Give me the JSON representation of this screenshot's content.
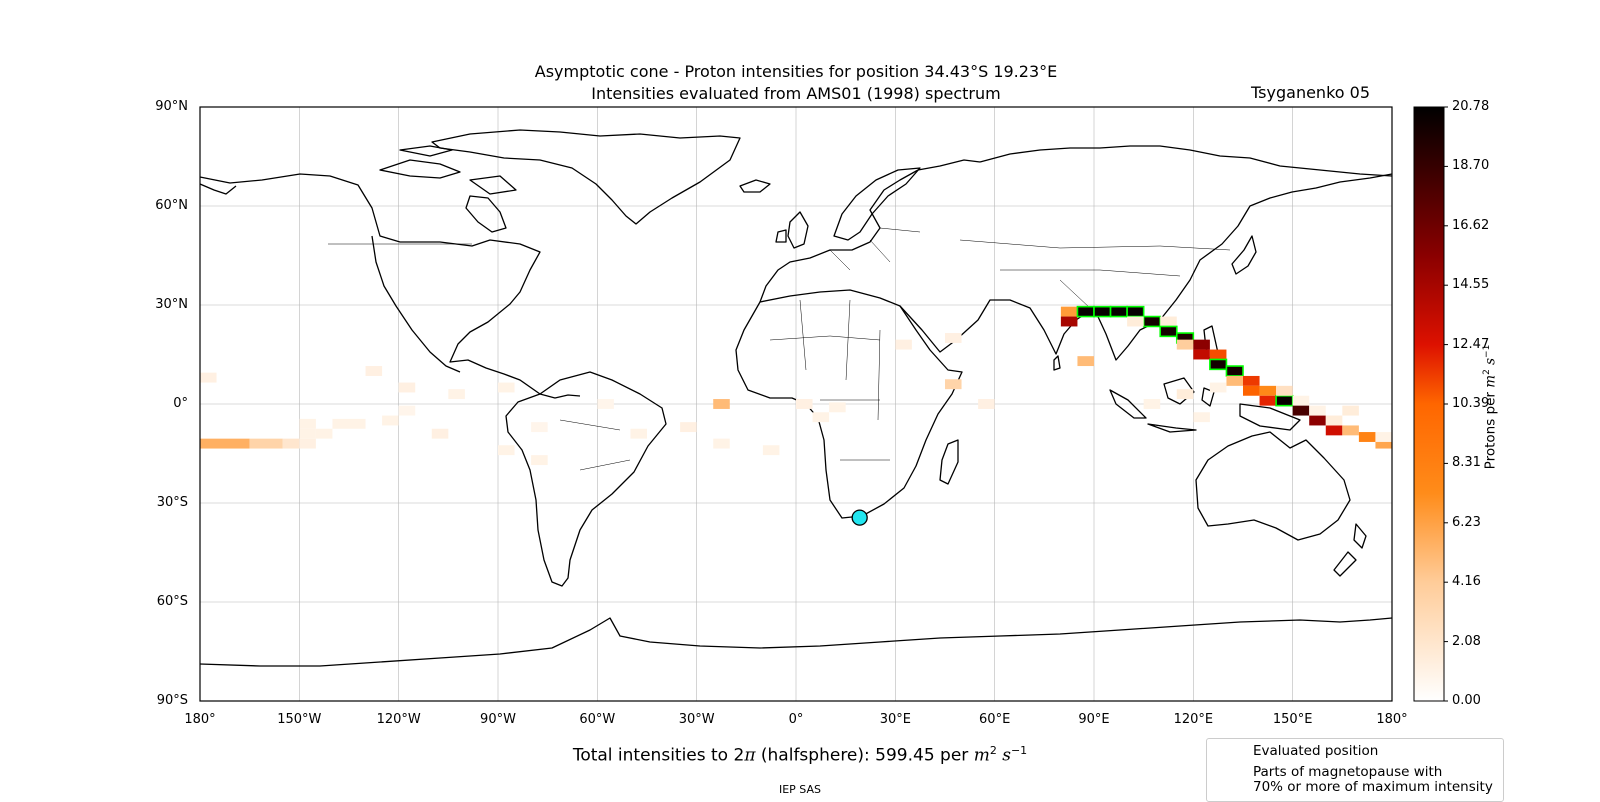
{
  "title": {
    "line1": "Asymptotic cone - Proton intensities for position 34.43°S 19.23°E",
    "line2": "Intensities evaluated from AMS01 (1998) spectrum",
    "model": "Tsyganenko 05"
  },
  "map": {
    "lat_ticks": [
      "90°N",
      "60°N",
      "30°N",
      "0°",
      "30°S",
      "60°S",
      "90°S"
    ],
    "lon_ticks": [
      "180°",
      "150°W",
      "120°W",
      "90°W",
      "60°W",
      "30°W",
      "0°",
      "30°E",
      "60°E",
      "90°E",
      "120°E",
      "150°E",
      "180°"
    ],
    "evaluated_position": {
      "lat": -34.43,
      "lon": 19.23,
      "color": "#22e6f0"
    },
    "highlight_color": "#00ff00"
  },
  "colorbar": {
    "ticks": [
      "20.78",
      "18.70",
      "16.62",
      "14.55",
      "12.47",
      "10.39",
      "8.31",
      "6.23",
      "4.16",
      "2.08",
      "0.00"
    ],
    "min": 0.0,
    "max": 20.78,
    "label_main": "Protons per ",
    "label_units_m": "m",
    "label_units_rest": "2 s−1"
  },
  "total": {
    "prefix": "Total intensities to 2",
    "pi": "π",
    "mid": " (halfsphere): 599.45 per ",
    "unit_m": "m",
    "unit_s": "s",
    "exp_2": "2",
    "exp_m1": "−1"
  },
  "legend": {
    "evaluated": "Evaluated position",
    "magnetopause_line1": "Parts of magnetopause with",
    "magnetopause_line2": "70% or more of maximum intensity"
  },
  "footer": "IEP SAS",
  "chart_data": {
    "type": "heatmap",
    "xlabel": "",
    "ylabel": "",
    "xlim": [
      -180,
      180
    ],
    "ylim": [
      -90,
      90
    ],
    "grid": true,
    "cells": [
      {
        "lon": -180,
        "lat": -12,
        "v": 5.5,
        "w": 15
      },
      {
        "lon": -165,
        "lat": -12,
        "v": 3.5,
        "w": 10
      },
      {
        "lon": -155,
        "lat": -12,
        "v": 2.0,
        "w": 5
      },
      {
        "lon": -150,
        "lat": -12,
        "v": 1.2,
        "w": 5
      },
      {
        "lon": -150,
        "lat": -9,
        "v": 1.0,
        "w": 5
      },
      {
        "lon": -150,
        "lat": -6,
        "v": 1.0,
        "w": 5
      },
      {
        "lon": -145,
        "lat": -9,
        "v": 1.0,
        "w": 5
      },
      {
        "lon": -140,
        "lat": -6,
        "v": 1.0,
        "w": 10
      },
      {
        "lon": -180,
        "lat": 8,
        "v": 1.2,
        "w": 5
      },
      {
        "lon": -130,
        "lat": 10,
        "v": 1.2,
        "w": 5
      },
      {
        "lon": -120,
        "lat": 5,
        "v": 1.2,
        "w": 5
      },
      {
        "lon": -125,
        "lat": -5,
        "v": 1.0,
        "w": 5
      },
      {
        "lon": -120,
        "lat": -2,
        "v": 0.8,
        "w": 5
      },
      {
        "lon": -110,
        "lat": -9,
        "v": 1.2,
        "w": 5
      },
      {
        "lon": -105,
        "lat": 3,
        "v": 1.0,
        "w": 5
      },
      {
        "lon": -90,
        "lat": 5,
        "v": 1.0,
        "w": 5
      },
      {
        "lon": -90,
        "lat": -14,
        "v": 1.0,
        "w": 5
      },
      {
        "lon": -80,
        "lat": -17,
        "v": 1.0,
        "w": 5
      },
      {
        "lon": -80,
        "lat": -7,
        "v": 0.8,
        "w": 5
      },
      {
        "lon": -60,
        "lat": 0,
        "v": 0.8,
        "w": 5
      },
      {
        "lon": -50,
        "lat": -9,
        "v": 1.0,
        "w": 5
      },
      {
        "lon": -35,
        "lat": -7,
        "v": 1.2,
        "w": 5
      },
      {
        "lon": -25,
        "lat": 0,
        "v": 5.0,
        "w": 5
      },
      {
        "lon": -25,
        "lat": -12,
        "v": 1.0,
        "w": 5
      },
      {
        "lon": -10,
        "lat": -14,
        "v": 1.0,
        "w": 5
      },
      {
        "lon": 0,
        "lat": 0,
        "v": 1.2,
        "w": 5
      },
      {
        "lon": 5,
        "lat": -4,
        "v": 1.0,
        "w": 5
      },
      {
        "lon": 10,
        "lat": -1,
        "v": 1.0,
        "w": 5
      },
      {
        "lon": 30,
        "lat": 18,
        "v": 1.2,
        "w": 5
      },
      {
        "lon": 45,
        "lat": 20,
        "v": 1.2,
        "w": 5
      },
      {
        "lon": 45,
        "lat": 6,
        "v": 3.5,
        "w": 5
      },
      {
        "lon": 55,
        "lat": 0,
        "v": 1.2,
        "w": 5
      },
      {
        "lon": 80,
        "lat": 28,
        "v": 6.5,
        "w": 5
      },
      {
        "lon": 80,
        "lat": 25,
        "v": 14.5,
        "w": 5
      },
      {
        "lon": 85,
        "lat": 13,
        "v": 5.0,
        "w": 5
      },
      {
        "lon": 85,
        "lat": 28,
        "v": 20.5,
        "w": 5,
        "h": true
      },
      {
        "lon": 90,
        "lat": 28,
        "v": 20.5,
        "w": 5,
        "h": true
      },
      {
        "lon": 95,
        "lat": 28,
        "v": 20.5,
        "w": 5,
        "h": true
      },
      {
        "lon": 100,
        "lat": 28,
        "v": 20.5,
        "w": 5,
        "h": true
      },
      {
        "lon": 105,
        "lat": 25,
        "v": 20.0,
        "w": 5,
        "h": true
      },
      {
        "lon": 100,
        "lat": 25,
        "v": 1.5,
        "w": 5
      },
      {
        "lon": 110,
        "lat": 25,
        "v": 1.5,
        "w": 5
      },
      {
        "lon": 110,
        "lat": 22,
        "v": 20.0,
        "w": 5,
        "h": true
      },
      {
        "lon": 115,
        "lat": 20,
        "v": 19.5,
        "w": 5,
        "h": true
      },
      {
        "lon": 115,
        "lat": 18,
        "v": 4.0,
        "w": 5
      },
      {
        "lon": 120,
        "lat": 18,
        "v": 15.5,
        "w": 5
      },
      {
        "lon": 120,
        "lat": 15,
        "v": 13.5,
        "w": 5
      },
      {
        "lon": 125,
        "lat": 15,
        "v": 11.0,
        "w": 5
      },
      {
        "lon": 125,
        "lat": 12,
        "v": 20.0,
        "w": 5,
        "h": true
      },
      {
        "lon": 130,
        "lat": 10,
        "v": 20.0,
        "w": 5,
        "h": true
      },
      {
        "lon": 130,
        "lat": 7,
        "v": 5.0,
        "w": 5
      },
      {
        "lon": 135,
        "lat": 7,
        "v": 11.5,
        "w": 5
      },
      {
        "lon": 135,
        "lat": 4,
        "v": 10.5,
        "w": 5
      },
      {
        "lon": 140,
        "lat": 4,
        "v": 7.5,
        "w": 5
      },
      {
        "lon": 140,
        "lat": 1,
        "v": 12.0,
        "w": 5
      },
      {
        "lon": 145,
        "lat": 1,
        "v": 20.5,
        "w": 5,
        "h": true
      },
      {
        "lon": 145,
        "lat": 4,
        "v": 2.5,
        "w": 5
      },
      {
        "lon": 150,
        "lat": 1,
        "v": 1.0,
        "w": 5
      },
      {
        "lon": 150,
        "lat": -2,
        "v": 18.0,
        "w": 5
      },
      {
        "lon": 155,
        "lat": -5,
        "v": 15.5,
        "w": 5
      },
      {
        "lon": 155,
        "lat": -2,
        "v": 1.0,
        "w": 5
      },
      {
        "lon": 160,
        "lat": -8,
        "v": 13.0,
        "w": 5
      },
      {
        "lon": 160,
        "lat": -5,
        "v": 1.5,
        "w": 5
      },
      {
        "lon": 165,
        "lat": -8,
        "v": 5.0,
        "w": 5
      },
      {
        "lon": 165,
        "lat": -2,
        "v": 1.5,
        "w": 5
      },
      {
        "lon": 170,
        "lat": -10,
        "v": 8.0,
        "w": 5
      },
      {
        "lon": 175,
        "lat": -12,
        "v": 6.0,
        "w": 5
      },
      {
        "lon": 175,
        "lat": -10,
        "v": 1.0,
        "w": 5
      },
      {
        "lon": 120,
        "lat": -4,
        "v": 1.0,
        "w": 5
      },
      {
        "lon": 115,
        "lat": 3,
        "v": 1.5,
        "w": 5
      },
      {
        "lon": 105,
        "lat": 0,
        "v": 1.0,
        "w": 5
      },
      {
        "lon": 125,
        "lat": 5,
        "v": 1.0,
        "w": 5
      }
    ]
  }
}
